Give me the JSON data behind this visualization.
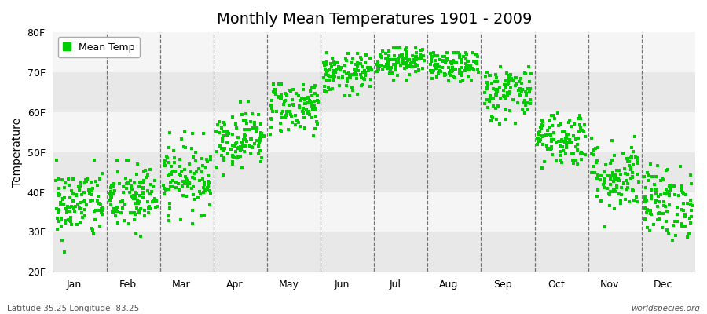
{
  "title": "Monthly Mean Temperatures 1901 - 2009",
  "ylabel": "Temperature",
  "xlabel_bottom_left": "Latitude 35.25 Longitude -83.25",
  "xlabel_bottom_right": "worldspecies.org",
  "legend_label": "Mean Temp",
  "background_color": "#ffffff",
  "plot_bg_light": "#f5f5f5",
  "plot_bg_dark": "#e8e8e8",
  "dot_color": "#00cc00",
  "dot_size": 6,
  "yticks": [
    20,
    30,
    40,
    50,
    60,
    70,
    80
  ],
  "ytick_labels": [
    "20F",
    "30F",
    "40F",
    "50F",
    "60F",
    "70F",
    "80F"
  ],
  "months": [
    "Jan",
    "Feb",
    "Mar",
    "Apr",
    "May",
    "Jun",
    "Jul",
    "Aug",
    "Sep",
    "Oct",
    "Nov",
    "Dec"
  ],
  "num_years": 109,
  "seed": 42,
  "mean_temps": [
    37.0,
    38.5,
    44.0,
    53.5,
    61.5,
    69.5,
    73.0,
    71.5,
    65.0,
    53.5,
    44.0,
    37.5
  ],
  "std_temps": [
    4.5,
    4.5,
    4.5,
    3.5,
    3.5,
    2.5,
    2.0,
    2.0,
    3.5,
    3.5,
    4.5,
    4.5
  ],
  "min_temps": [
    22,
    27,
    32,
    44,
    54,
    64,
    68,
    67,
    56,
    44,
    31,
    28
  ],
  "max_temps": [
    48,
    48,
    55,
    65,
    67,
    75,
    76,
    75,
    74,
    63,
    58,
    47
  ]
}
